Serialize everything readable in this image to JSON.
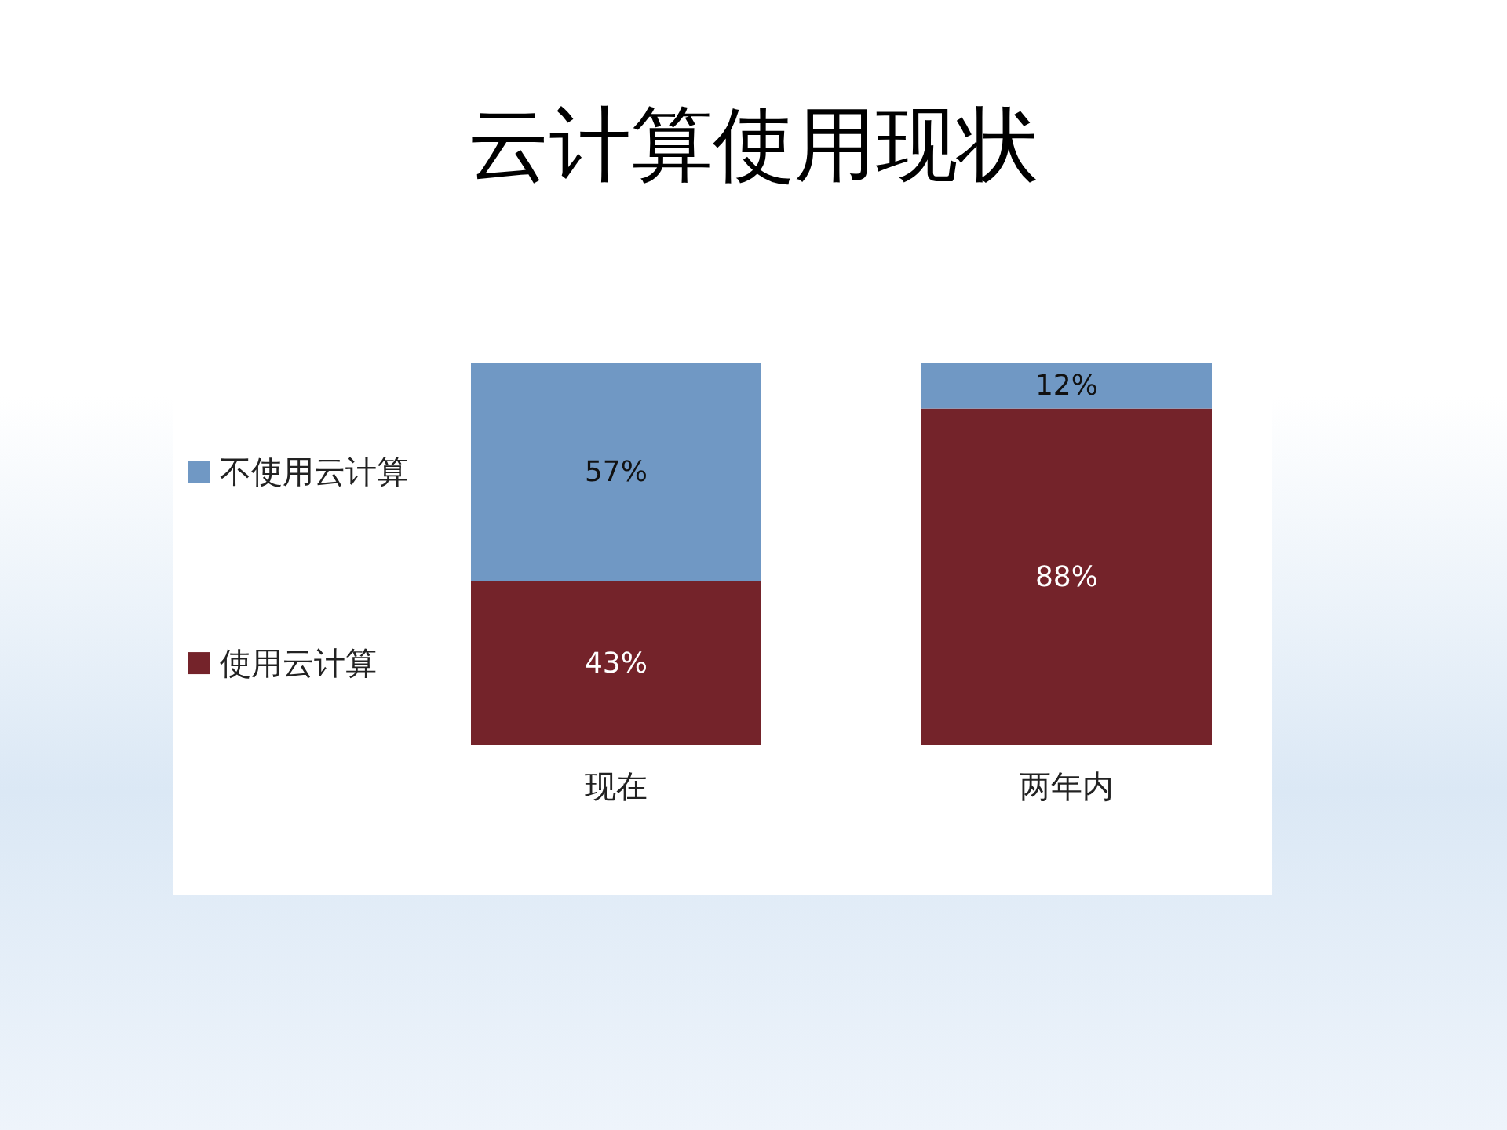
{
  "chart_data": {
    "type": "bar",
    "title": "云计算使用现状",
    "stacked": true,
    "legend": "left",
    "ylim": [
      0,
      100
    ],
    "categories": [
      "现在",
      "两年内"
    ],
    "series": [
      {
        "name": "使用云计算",
        "color": "#74232a",
        "values": [
          43,
          88
        ],
        "value_labels": [
          "43%",
          "88%"
        ]
      },
      {
        "name": "不使用云计算",
        "color": "#7098c4",
        "values": [
          57,
          12
        ],
        "value_labels": [
          "57%",
          "12%"
        ]
      }
    ]
  }
}
